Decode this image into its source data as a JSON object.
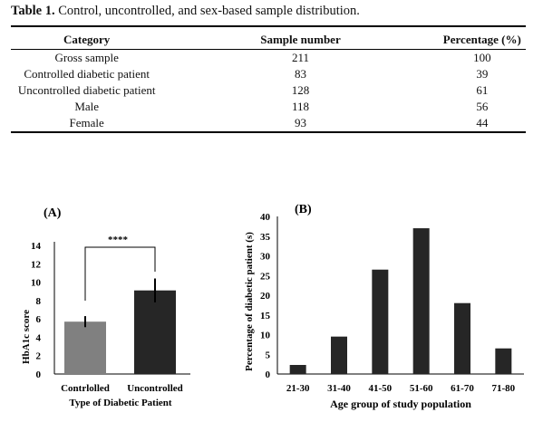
{
  "table": {
    "caption_label": "Table 1.",
    "caption_text": " Control, uncontrolled, and sex-based sample distribution.",
    "headers": [
      "Category",
      "Sample number",
      "Percentage (%)"
    ],
    "rows": [
      [
        "Gross sample",
        "211",
        "100"
      ],
      [
        "Controlled diabetic patient",
        "83",
        "39"
      ],
      [
        "Uncontrolled diabetic patient",
        "128",
        "61"
      ],
      [
        "Male",
        "118",
        "56"
      ],
      [
        "Female",
        "93",
        "44"
      ]
    ]
  },
  "chart_data": [
    {
      "type": "bar",
      "panel_label": "(A)",
      "categories": [
        "Contrlolled",
        "Uncontrolled"
      ],
      "values": [
        5.7,
        9.1
      ],
      "errors": [
        0.6,
        1.3
      ],
      "colors": [
        "#808080",
        "#262626"
      ],
      "xlabel": "Type of Diabetic Patient",
      "ylabel": "HbA1c score",
      "ylim": [
        0,
        14
      ],
      "yticks": [
        0,
        2,
        4,
        6,
        8,
        10,
        12,
        14
      ],
      "significance": "****",
      "grid": false
    },
    {
      "type": "bar",
      "panel_label": "(B)",
      "categories": [
        "21-30",
        "31-40",
        "41-50",
        "51-60",
        "61-70",
        "71-80"
      ],
      "values": [
        2.3,
        9.5,
        26.5,
        37,
        18,
        6.5
      ],
      "colors": [
        "#262626"
      ],
      "xlabel": "Age group of study population",
      "ylabel": "Percentage of diabetic patient (s)",
      "ylim": [
        0,
        40
      ],
      "yticks": [
        0,
        5,
        10,
        15,
        20,
        25,
        30,
        35,
        40
      ],
      "grid": false
    }
  ]
}
